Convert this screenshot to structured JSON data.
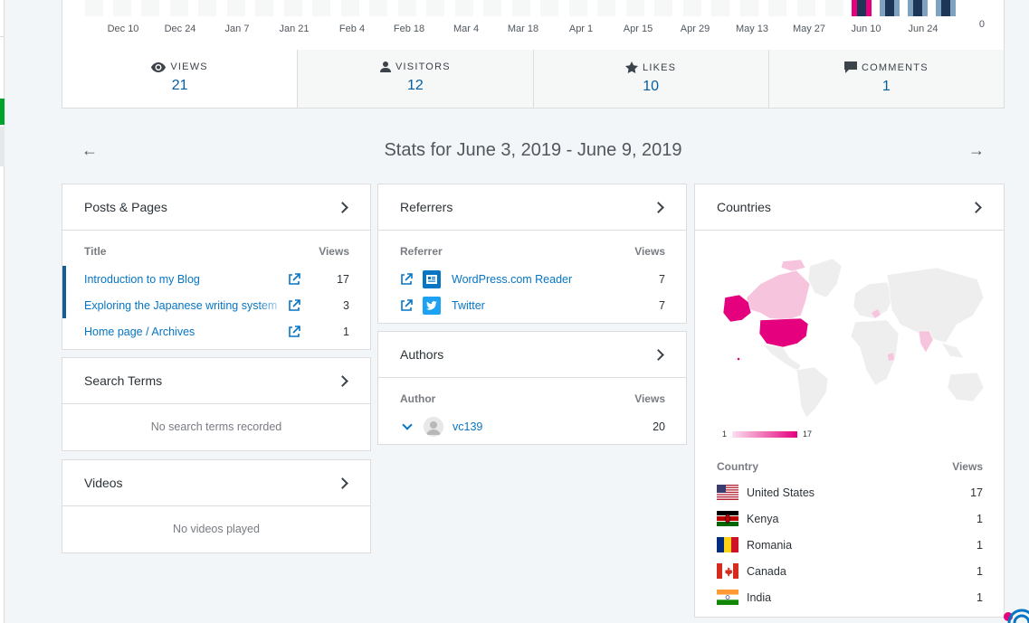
{
  "chart": {
    "x_ticks": [
      "Dec 10",
      "Dec 24",
      "Jan 7",
      "Jan 21",
      "Feb 4",
      "Feb 18",
      "Mar 4",
      "Mar 18",
      "Apr 1",
      "Apr 15",
      "Apr 29",
      "May 13",
      "May 27",
      "Jun 10",
      "Jun 24"
    ],
    "y_zero": "0"
  },
  "tabs": [
    {
      "label": "Views",
      "value": "21",
      "icon": "eye-icon"
    },
    {
      "label": "Visitors",
      "value": "12",
      "icon": "person-icon"
    },
    {
      "label": "Likes",
      "value": "10",
      "icon": "star-icon"
    },
    {
      "label": "Comments",
      "value": "1",
      "icon": "comment-icon"
    }
  ],
  "period": {
    "title": "Stats for June 3, 2019 - June 9, 2019"
  },
  "posts": {
    "title": "Posts & Pages",
    "col_title": "Title",
    "col_views": "Views",
    "rows": [
      {
        "name": "Introduction to my Blog",
        "views": "17"
      },
      {
        "name": "Exploring the Japanese writing system",
        "views": "3"
      },
      {
        "name": "Home page / Archives",
        "views": "1"
      }
    ]
  },
  "search_terms": {
    "title": "Search Terms",
    "empty": "No search terms recorded"
  },
  "videos": {
    "title": "Videos",
    "empty": "No videos played"
  },
  "referrers": {
    "title": "Referrers",
    "col_ref": "Referrer",
    "col_views": "Views",
    "rows": [
      {
        "name": "WordPress.com Reader",
        "views": "7",
        "icon": "reader-icon"
      },
      {
        "name": "Twitter",
        "views": "7",
        "icon": "twitter-icon"
      }
    ]
  },
  "authors": {
    "title": "Authors",
    "col_author": "Author",
    "col_views": "Views",
    "rows": [
      {
        "name": "vc139",
        "views": "20"
      }
    ]
  },
  "countries": {
    "title": "Countries",
    "legend_min": "1",
    "legend_max": "17",
    "col_country": "Country",
    "col_views": "Views",
    "rows": [
      {
        "name": "United States",
        "views": "17"
      },
      {
        "name": "Kenya",
        "views": "1"
      },
      {
        "name": "Romania",
        "views": "1"
      },
      {
        "name": "Canada",
        "views": "1"
      },
      {
        "name": "India",
        "views": "1"
      }
    ]
  },
  "colors": {
    "accent": "#0675c4",
    "highlight": "#e5007d",
    "bar_dark": "#1d3557"
  }
}
